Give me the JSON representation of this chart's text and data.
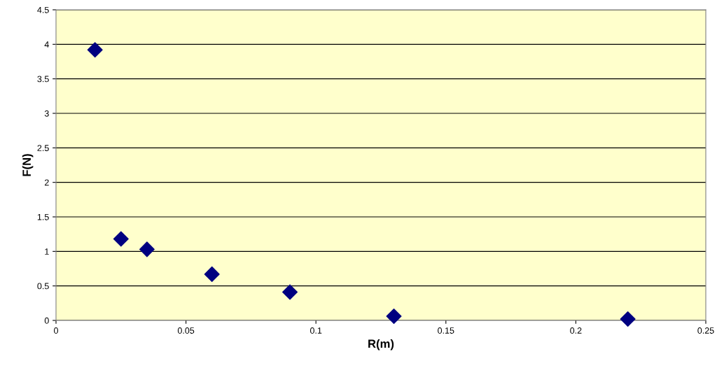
{
  "chart_data": {
    "type": "scatter",
    "xlabel": "R(m)",
    "ylabel": "F(N)",
    "x": [
      0.015,
      0.025,
      0.035,
      0.06,
      0.09,
      0.13,
      0.22
    ],
    "series": [
      {
        "color": "#000080",
        "values": [
          3.92,
          1.18,
          1.03,
          0.67,
          0.41,
          0.06,
          0.02
        ]
      }
    ],
    "xlim": [
      0,
      0.25
    ],
    "xticks": [
      0,
      0.05,
      0.1,
      0.15,
      0.2,
      0.25
    ],
    "ylim": [
      0,
      4.5
    ],
    "yticks": [
      0,
      0.5,
      1,
      1.5,
      2,
      2.5,
      3,
      3.5,
      4,
      4.5
    ],
    "grid": "y",
    "marker": "diamond",
    "legend": false
  }
}
